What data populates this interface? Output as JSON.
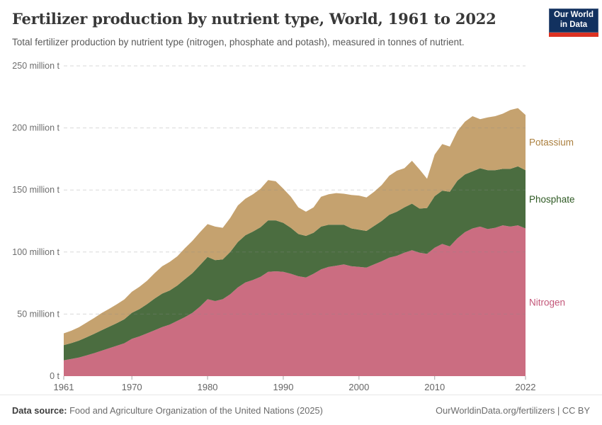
{
  "header": {
    "title": "Fertilizer production by nutrient type, World, 1961 to 2022",
    "subtitle": "Total fertilizer production by nutrient type (nitrogen, phosphate and potash), measured in tonnes of nutrient.",
    "logo": {
      "line1": "Our World",
      "line2": "in Data",
      "navy": "#12315f",
      "red": "#dc3222"
    }
  },
  "footer": {
    "source_label": "Data source:",
    "source_text": " Food and Agriculture Organization of the United Nations (2025)",
    "right_link": "OurWorldinData.org/fertilizers",
    "right_license": " | CC BY"
  },
  "chart_data": {
    "type": "area",
    "stacked": true,
    "title": "Fertilizer production by nutrient type, World, 1961 to 2022",
    "xlabel": "",
    "ylabel": "tonnes of nutrient",
    "unit": "million tonnes",
    "ylim": [
      0,
      250
    ],
    "grid": true,
    "legend_position": "right-edge-labels",
    "x": [
      1961,
      1962,
      1963,
      1964,
      1965,
      1966,
      1967,
      1968,
      1969,
      1970,
      1971,
      1972,
      1973,
      1974,
      1975,
      1976,
      1977,
      1978,
      1979,
      1980,
      1981,
      1982,
      1983,
      1984,
      1985,
      1986,
      1987,
      1988,
      1989,
      1990,
      1991,
      1992,
      1993,
      1994,
      1995,
      1996,
      1997,
      1998,
      1999,
      2000,
      2001,
      2002,
      2003,
      2004,
      2005,
      2006,
      2007,
      2008,
      2009,
      2010,
      2011,
      2012,
      2013,
      2014,
      2015,
      2016,
      2017,
      2018,
      2019,
      2020,
      2021,
      2022
    ],
    "series": [
      {
        "name": "Nitrogen",
        "color": "#cb6d81",
        "label_color": "#c35779",
        "values": [
          12.8,
          13.8,
          15.0,
          16.7,
          18.5,
          20.5,
          22.5,
          24.5,
          26.5,
          30.0,
          32.0,
          34.5,
          37.0,
          39.5,
          41.5,
          44.5,
          47.5,
          51.0,
          56.0,
          62.0,
          60.5,
          62.0,
          66.0,
          71.5,
          75.5,
          77.5,
          80.0,
          84.0,
          84.5,
          84.0,
          82.5,
          80.5,
          79.5,
          82.5,
          86.0,
          88.0,
          89.0,
          90.0,
          88.5,
          88.0,
          87.5,
          90.0,
          92.5,
          95.5,
          97.0,
          99.5,
          101.5,
          99.5,
          98.5,
          103.5,
          106.5,
          104.5,
          111.0,
          116.0,
          119.0,
          120.5,
          118.5,
          119.5,
          121.5,
          120.5,
          121.5,
          119.0
        ]
      },
      {
        "name": "Phosphate",
        "color": "#4b6d40",
        "label_color": "#2f5a24",
        "values": [
          12.2,
          12.8,
          13.6,
          14.6,
          15.5,
          16.5,
          17.3,
          18.2,
          19.3,
          21.0,
          22.0,
          23.5,
          25.5,
          27.0,
          27.5,
          28.5,
          30.5,
          32.0,
          33.5,
          34.0,
          33.0,
          32.0,
          34.0,
          36.5,
          38.0,
          39.0,
          40.0,
          41.5,
          41.0,
          39.5,
          37.0,
          34.0,
          33.5,
          33.0,
          34.5,
          34.0,
          33.0,
          32.0,
          30.5,
          30.0,
          29.5,
          31.0,
          32.5,
          34.5,
          35.5,
          36.5,
          37.5,
          35.5,
          37.0,
          41.5,
          43.0,
          44.0,
          46.5,
          46.5,
          46.0,
          47.0,
          47.5,
          46.5,
          45.5,
          46.5,
          47.5,
          47.0
        ]
      },
      {
        "name": "Potassium",
        "color": "#c5a26f",
        "label_color": "#ab8040",
        "values": [
          9.5,
          10.0,
          10.8,
          11.8,
          12.8,
          13.8,
          14.4,
          15.2,
          16.0,
          17.0,
          18.0,
          18.8,
          20.5,
          22.0,
          23.0,
          23.5,
          25.0,
          26.0,
          26.5,
          26.5,
          27.0,
          25.5,
          27.5,
          29.5,
          29.5,
          30.0,
          31.0,
          32.5,
          31.5,
          27.5,
          25.0,
          21.5,
          19.5,
          20.5,
          24.0,
          24.5,
          25.5,
          25.0,
          27.0,
          27.5,
          27.0,
          27.5,
          29.0,
          31.5,
          33.0,
          31.5,
          34.5,
          31.5,
          23.5,
          33.5,
          37.5,
          36.5,
          40.0,
          42.5,
          44.5,
          39.5,
          42.5,
          43.5,
          44.5,
          47.5,
          47.0,
          44.5
        ]
      }
    ],
    "y_ticks": [
      {
        "value": 0,
        "label": "0 t"
      },
      {
        "value": 50,
        "label": "50 million t"
      },
      {
        "value": 100,
        "label": "100 million t"
      },
      {
        "value": 150,
        "label": "150 million t"
      },
      {
        "value": 200,
        "label": "200 million t"
      },
      {
        "value": 250,
        "label": "250 million t"
      }
    ],
    "x_ticks": [
      1961,
      1970,
      1980,
      1990,
      2000,
      2010,
      2022
    ]
  }
}
